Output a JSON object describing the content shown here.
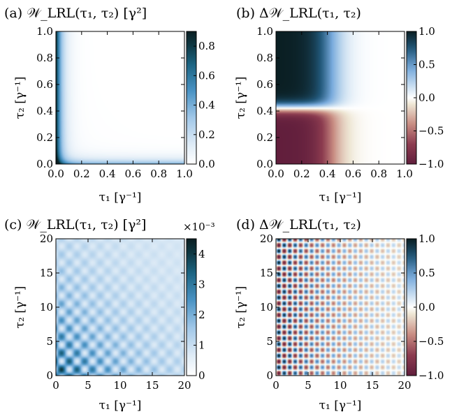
{
  "figure": {
    "panels": [
      {
        "title": "(a) 𝒲_LRL(τ₁, τ₂) [γ²]",
        "xlabel": "τ₁ [γ⁻¹]",
        "ylabel": "τ₂ [γ⁻¹]",
        "cbar_multiplier": ""
      },
      {
        "title": "(b) Δ𝒲_LRL(τ₁, τ₂)",
        "xlabel": "τ₁ [γ⁻¹]",
        "ylabel": "τ₂ [γ⁻¹]",
        "cbar_multiplier": ""
      },
      {
        "title": "(c) 𝒲_LRL(τ₁, τ₂) [γ²]",
        "xlabel": "τ₁ [γ⁻¹]",
        "ylabel": "τ₂ [γ⁻¹]",
        "cbar_multiplier": "×10⁻³"
      },
      {
        "title": "(d) Δ𝒲_LRL(τ₁, τ₂)",
        "xlabel": "τ₁ [γ⁻¹]",
        "ylabel": "τ₂ [γ⁻¹]",
        "cbar_multiplier": ""
      }
    ]
  },
  "chart_data": [
    {
      "type": "heatmap",
      "panel": "a",
      "title": "(a) 𝒲_LRL(τ₁, τ₂) [γ²]",
      "xlabel": "τ₁ [γ⁻¹]",
      "ylabel": "τ₂ [γ⁻¹]",
      "xlim": [
        0,
        1
      ],
      "ylim": [
        0,
        1
      ],
      "xticks": [
        0.0,
        0.2,
        0.4,
        0.6,
        0.8,
        1.0
      ],
      "yticks": [
        0.0,
        0.2,
        0.4,
        0.6,
        0.8,
        1.0
      ],
      "xtick_labels": [
        "0.0",
        "0.2",
        "0.4",
        "0.6",
        "0.8",
        "1.0"
      ],
      "ytick_labels": [
        "0.0",
        "0.2",
        "0.4",
        "0.6",
        "0.8",
        "1.0"
      ],
      "colorbar": {
        "range": [
          0,
          0.9
        ],
        "ticks": [
          0.0,
          0.2,
          0.4,
          0.6,
          0.8
        ],
        "tick_labels": [
          "0.0",
          "0.2",
          "0.4",
          "0.6",
          "0.8"
        ],
        "colormap": "white-blue-darkteal"
      },
      "features": "Maximum (~0.9) along τ₁≈0 edge; high band along τ₂≈0; near zero elsewhere"
    },
    {
      "type": "heatmap",
      "panel": "b",
      "title": "(b) Δ𝒲_LRL(τ₁, τ₂)",
      "xlabel": "τ₁ [γ⁻¹]",
      "ylabel": "τ₂ [γ⁻¹]",
      "xlim": [
        0,
        1
      ],
      "ylim": [
        0,
        1
      ],
      "xticks": [
        0.0,
        0.2,
        0.4,
        0.6,
        0.8,
        1.0
      ],
      "yticks": [
        0.0,
        0.2,
        0.4,
        0.6,
        0.8,
        1.0
      ],
      "xtick_labels": [
        "0.0",
        "0.2",
        "0.4",
        "0.6",
        "0.8",
        "1.0"
      ],
      "ytick_labels": [
        "0.0",
        "0.2",
        "0.4",
        "0.6",
        "0.8",
        "1.0"
      ],
      "colorbar": {
        "range": [
          -1,
          1
        ],
        "ticks": [
          -1.0,
          -0.5,
          0.0,
          0.5,
          1.0
        ],
        "tick_labels": [
          "−1.0",
          "−0.5",
          "0.0",
          "0.5",
          "1.0"
        ],
        "colormap": "diverging-maroon-white-teal"
      },
      "features": "≈+1 for τ₂>0.4 at small τ₁; ≈−1 for τ₂<0.4 at small τ₁; zero line at τ₂≈0.4; decays toward 0 for τ₁>0.5"
    },
    {
      "type": "heatmap",
      "panel": "c",
      "title": "(c) 𝒲_LRL(τ₁, τ₂) [γ²]",
      "xlabel": "τ₁ [γ⁻¹]",
      "ylabel": "τ₂ [γ⁻¹]",
      "xlim": [
        0,
        20
      ],
      "ylim": [
        0,
        20
      ],
      "xticks": [
        0,
        5,
        10,
        15,
        20
      ],
      "yticks": [
        0,
        5,
        10,
        15,
        20
      ],
      "xtick_labels": [
        "0",
        "5",
        "10",
        "15",
        "20"
      ],
      "ytick_labels": [
        "0",
        "5",
        "10",
        "15",
        "20"
      ],
      "colorbar": {
        "range": [
          0,
          4.5
        ],
        "ticks": [
          0,
          1,
          2,
          3,
          4
        ],
        "tick_labels": [
          "0",
          "1",
          "2",
          "3",
          "4"
        ],
        "multiplier": "×10⁻³",
        "colormap": "white-blue-darkteal"
      },
      "features": "Diagonal checkerboard oscillation, period ≈2.4, strongest near origin and decaying with τ₁+τ₂"
    },
    {
      "type": "heatmap",
      "panel": "d",
      "title": "(d) Δ𝒲_LRL(τ₁, τ₂)",
      "xlabel": "τ₁ [γ⁻¹]",
      "ylabel": "τ₂ [γ⁻¹]",
      "xlim": [
        0,
        20
      ],
      "ylim": [
        0,
        20
      ],
      "xticks": [
        0,
        5,
        10,
        15,
        20
      ],
      "yticks": [
        0,
        5,
        10,
        15,
        20
      ],
      "xtick_labels": [
        "0",
        "5",
        "10",
        "15",
        "20"
      ],
      "ytick_labels": [
        "0",
        "5",
        "10",
        "15",
        "20"
      ],
      "colorbar": {
        "range": [
          -1,
          1
        ],
        "ticks": [
          -1.0,
          -0.5,
          0.0,
          0.5,
          1.0
        ],
        "tick_labels": [
          "−1.0",
          "−0.5",
          "0.0",
          "0.5",
          "1.0"
        ],
        "colormap": "diverging-maroon-white-teal"
      },
      "features": "Grid of alternating ±1 blobs, period ≈1.7 in both τ₁ and τ₂, amplitude decaying with τ₁"
    }
  ]
}
